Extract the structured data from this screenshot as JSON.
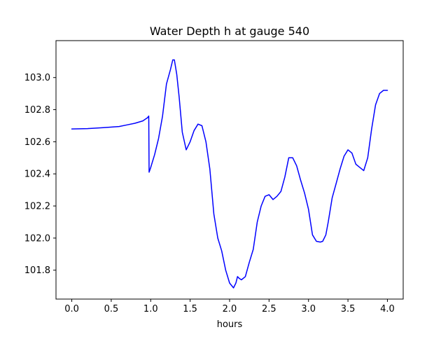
{
  "chart_data": {
    "type": "line",
    "title": "Water Depth h at gauge 540",
    "xlabel": "hours",
    "ylabel": "",
    "xlim": [
      -0.2,
      4.2
    ],
    "ylim": [
      101.62,
      103.23
    ],
    "xticks": [
      0.0,
      0.5,
      1.0,
      1.5,
      2.0,
      2.5,
      3.0,
      3.5,
      4.0
    ],
    "xtick_labels": [
      "0.0",
      "0.5",
      "1.0",
      "1.5",
      "2.0",
      "2.5",
      "3.0",
      "3.5",
      "4.0"
    ],
    "yticks": [
      101.8,
      102.0,
      102.2,
      102.4,
      102.6,
      102.8,
      103.0
    ],
    "ytick_labels": [
      "101.8",
      "102.0",
      "102.2",
      "102.4",
      "102.6",
      "102.8",
      "103.0"
    ],
    "grid": false,
    "legend": "none",
    "series": [
      {
        "color": "#0000ff",
        "x": [
          0.0,
          0.2,
          0.4,
          0.6,
          0.7,
          0.8,
          0.9,
          0.96,
          0.975,
          0.98,
          1.0,
          1.05,
          1.1,
          1.15,
          1.2,
          1.25,
          1.28,
          1.3,
          1.33,
          1.36,
          1.4,
          1.45,
          1.5,
          1.55,
          1.6,
          1.65,
          1.7,
          1.75,
          1.8,
          1.85,
          1.9,
          1.95,
          2.0,
          2.05,
          2.08,
          2.1,
          2.12,
          2.15,
          2.2,
          2.25,
          2.3,
          2.35,
          2.4,
          2.45,
          2.5,
          2.55,
          2.6,
          2.65,
          2.7,
          2.75,
          2.8,
          2.85,
          2.9,
          2.95,
          3.0,
          3.05,
          3.1,
          3.15,
          3.18,
          3.22,
          3.25,
          3.3,
          3.35,
          3.4,
          3.45,
          3.5,
          3.55,
          3.6,
          3.65,
          3.7,
          3.75,
          3.8,
          3.85,
          3.9,
          3.95,
          3.98,
          4.0
        ],
        "y": [
          102.68,
          102.682,
          102.688,
          102.695,
          102.705,
          102.715,
          102.73,
          102.75,
          102.76,
          102.41,
          102.44,
          102.52,
          102.62,
          102.76,
          102.96,
          103.05,
          103.11,
          103.11,
          103.02,
          102.88,
          102.66,
          102.55,
          102.6,
          102.67,
          102.71,
          102.7,
          102.6,
          102.43,
          102.15,
          102.0,
          101.92,
          101.8,
          101.72,
          101.69,
          101.72,
          101.76,
          101.75,
          101.74,
          101.76,
          101.85,
          101.93,
          102.1,
          102.2,
          102.26,
          102.27,
          102.24,
          102.26,
          102.29,
          102.38,
          102.5,
          102.5,
          102.45,
          102.36,
          102.28,
          102.18,
          102.02,
          101.98,
          101.975,
          101.98,
          102.02,
          102.1,
          102.25,
          102.34,
          102.43,
          102.51,
          102.55,
          102.53,
          102.46,
          102.44,
          102.42,
          102.5,
          102.68,
          102.83,
          102.9,
          102.92,
          102.92,
          102.92
        ]
      }
    ]
  }
}
